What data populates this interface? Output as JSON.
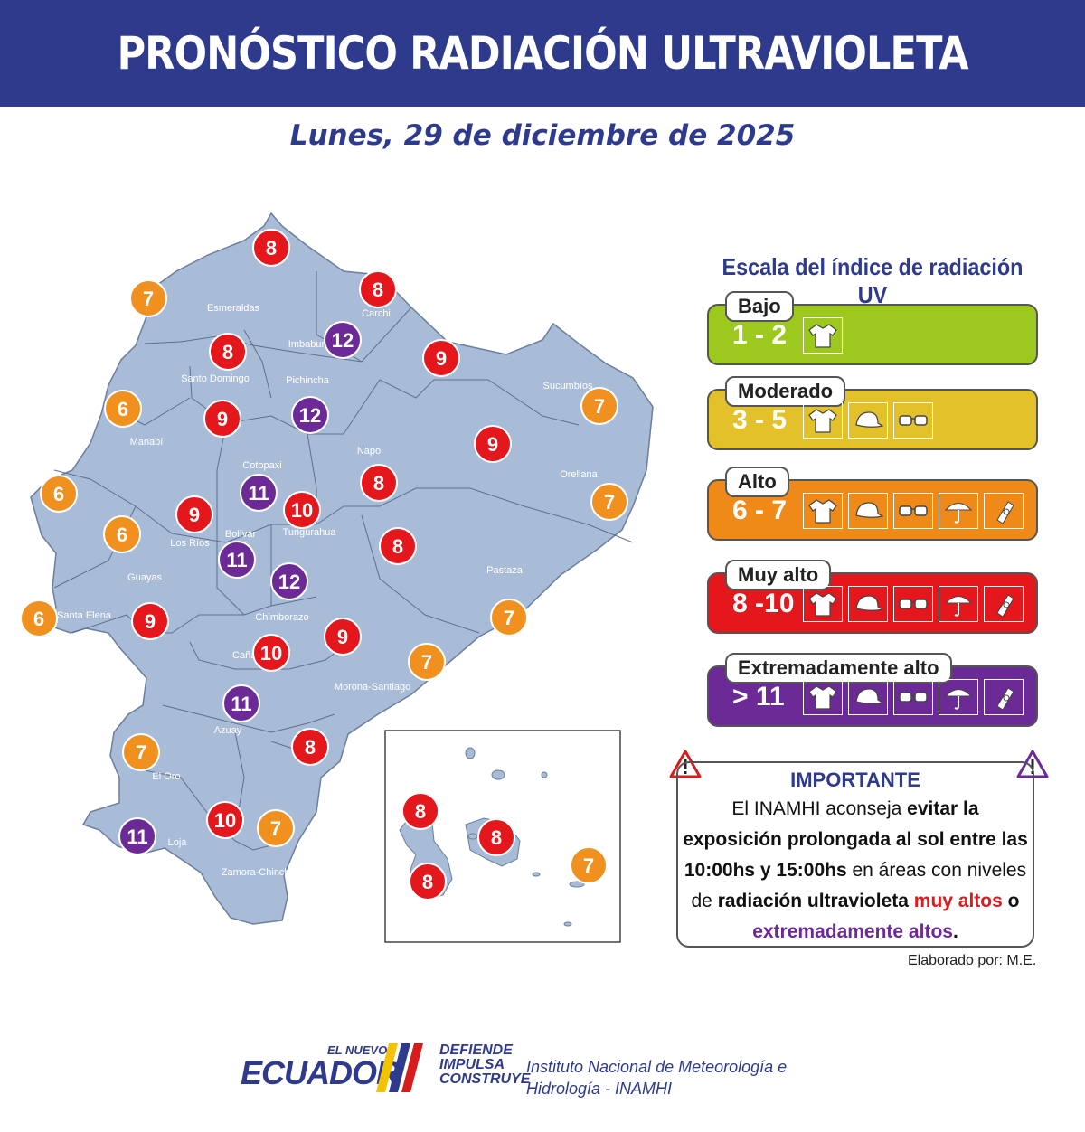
{
  "title": "PRONÓSTICO RADIACIÓN ULTRAVIOLETA",
  "date": "Lunes, 29 de diciembre de 2025",
  "map": {
    "provinces": [
      "Esmeraldas",
      "Carchi",
      "Imbabura",
      "Pichincha",
      "Santo Domingo",
      "Sucumbíos",
      "Manabí",
      "Napo",
      "Orellana",
      "Cotopaxi",
      "Tungurahua",
      "Los Ríos",
      "Bolívar",
      "Pastaza",
      "Guayas",
      "Santa Elena",
      "Chimborazo",
      "Cañar",
      "Morona-Santiago",
      "Azuay",
      "El Oro",
      "Loja",
      "Zamora-Chinchipe"
    ],
    "uv_points": [
      {
        "value": "8",
        "level": "muy_alto"
      },
      {
        "value": "7",
        "level": "alto"
      },
      {
        "value": "8",
        "level": "muy_alto"
      },
      {
        "value": "12",
        "level": "extremo"
      },
      {
        "value": "8",
        "level": "muy_alto"
      },
      {
        "value": "9",
        "level": "muy_alto"
      },
      {
        "value": "6",
        "level": "alto"
      },
      {
        "value": "9",
        "level": "muy_alto"
      },
      {
        "value": "12",
        "level": "extremo"
      },
      {
        "value": "7",
        "level": "alto"
      },
      {
        "value": "9",
        "level": "muy_alto"
      },
      {
        "value": "6",
        "level": "alto"
      },
      {
        "value": "11",
        "level": "extremo"
      },
      {
        "value": "10",
        "level": "muy_alto"
      },
      {
        "value": "8",
        "level": "muy_alto"
      },
      {
        "value": "7",
        "level": "alto"
      },
      {
        "value": "9",
        "level": "muy_alto"
      },
      {
        "value": "6",
        "level": "alto"
      },
      {
        "value": "11",
        "level": "extremo"
      },
      {
        "value": "8",
        "level": "muy_alto"
      },
      {
        "value": "12",
        "level": "extremo"
      },
      {
        "value": "6",
        "level": "alto"
      },
      {
        "value": "9",
        "level": "muy_alto"
      },
      {
        "value": "7",
        "level": "alto"
      },
      {
        "value": "9",
        "level": "muy_alto"
      },
      {
        "value": "10",
        "level": "muy_alto"
      },
      {
        "value": "7",
        "level": "alto"
      },
      {
        "value": "11",
        "level": "extremo"
      },
      {
        "value": "7",
        "level": "alto"
      },
      {
        "value": "8",
        "level": "muy_alto"
      },
      {
        "value": "10",
        "level": "muy_alto"
      },
      {
        "value": "7",
        "level": "alto"
      },
      {
        "value": "11",
        "level": "extremo"
      }
    ],
    "galapagos_points": [
      {
        "value": "8",
        "level": "muy_alto"
      },
      {
        "value": "8",
        "level": "muy_alto"
      },
      {
        "value": "8",
        "level": "muy_alto"
      },
      {
        "value": "7",
        "level": "alto"
      }
    ]
  },
  "legend": {
    "title": "Escala del índice de radiación UV",
    "bands": [
      {
        "name": "Bajo",
        "range": "1 - 2",
        "color": "#9dc81e",
        "icons": [
          "shirt-icon"
        ]
      },
      {
        "name": "Moderado",
        "range": "3 - 5",
        "color": "#e2c12a",
        "icons": [
          "shirt-icon",
          "cap-icon",
          "sunglasses-icon"
        ]
      },
      {
        "name": "Alto",
        "range": "6 - 7",
        "color": "#ef8a18",
        "icons": [
          "shirt-icon",
          "cap-icon",
          "sunglasses-icon",
          "umbrella-icon",
          "sunscreen-icon"
        ]
      },
      {
        "name": "Muy alto",
        "range": "8 -10",
        "color": "#e3171c",
        "icons": [
          "shirt-icon",
          "cap-icon",
          "sunglasses-icon",
          "umbrella-icon",
          "sunscreen-icon"
        ]
      },
      {
        "name": "Extremadamente alto",
        "range": "> 11",
        "color": "#6b2a95",
        "icons": [
          "shirt-icon",
          "cap-icon",
          "sunglasses-icon",
          "umbrella-icon",
          "sunscreen-icon"
        ]
      }
    ]
  },
  "important": {
    "title": "IMPORTANTE",
    "l1a": "El INAMHI aconseja ",
    "l1b": "evitar la",
    "l2": "exposición prolongada al sol entre las",
    "l3a": "10:00hs y 15:00hs",
    "l3b": " en áreas con niveles",
    "l4a": "de ",
    "l4b": "radiación ultravioleta",
    "l4c": "muy altos",
    "l4d": " o",
    "l5a": "extremadamente altos",
    "l5b": "."
  },
  "credit": "Elaborado por: M.E.",
  "footer": {
    "brand_top": "EL NUEVO",
    "brand_main": "ECUADOR",
    "slogan": [
      "DEFIENDE",
      "IMPULSA",
      "CONSTRUYE"
    ],
    "institute_line1": "Instituto Nacional de Meteorología e",
    "institute_line2": "Hidrología - INAMHI"
  },
  "colors": {
    "header": "#2e3a8c",
    "muy_alto": "#e3171c",
    "alto": "#f0901e",
    "extremo": "#6b2a95",
    "land": "#a8bcd8"
  }
}
